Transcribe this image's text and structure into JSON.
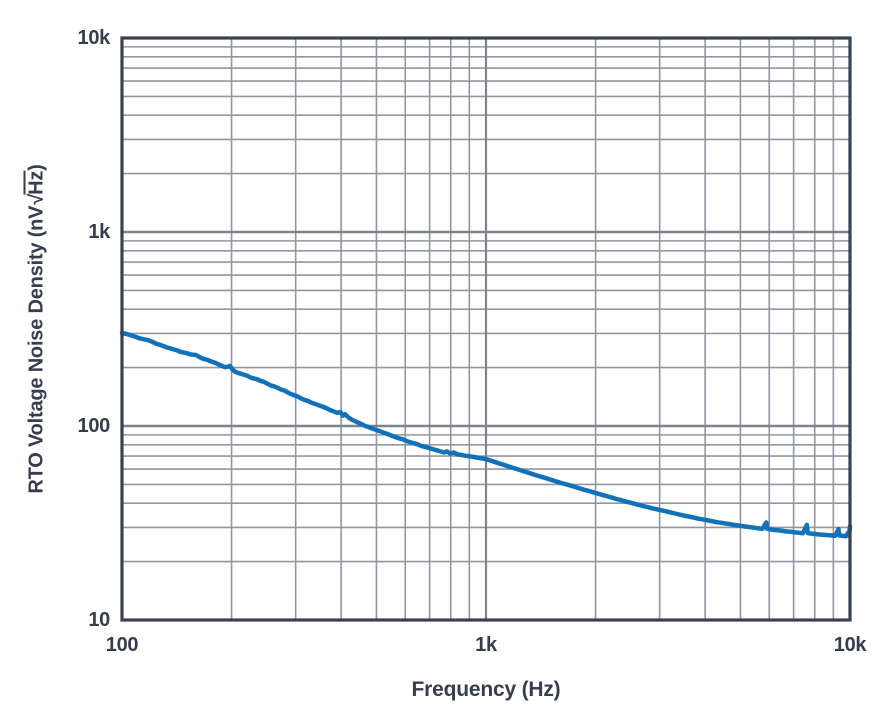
{
  "colors": {
    "background": "#ffffff",
    "frame": "#3a4150",
    "grid_minor": "#9196a0",
    "grid_major": "#7e838e",
    "text": "#363d4d",
    "curve": "#1272b9"
  },
  "chart_data": {
    "type": "line",
    "title": "",
    "xlabel": "Frequency (Hz)",
    "ylabel": "RTO Voltage Noise Density (nV√Hz)",
    "ylabel_parts": {
      "prefix": "RTO Voltage Noise Density (nV",
      "radical": "√",
      "radicand": "Hz",
      "suffix": ")"
    },
    "x_scale": "log",
    "y_scale": "log",
    "xlim": [
      100,
      10000
    ],
    "ylim": [
      10,
      10000
    ],
    "grid": "on",
    "legend_position": "none",
    "x_ticks": [
      {
        "value": 100,
        "label": "100"
      },
      {
        "value": 1000,
        "label": "1k"
      },
      {
        "value": 10000,
        "label": "10k"
      }
    ],
    "y_ticks": [
      {
        "value": 10,
        "label": "10"
      },
      {
        "value": 100,
        "label": "100"
      },
      {
        "value": 1000,
        "label": "1k"
      },
      {
        "value": 10000,
        "label": "10k"
      }
    ],
    "series": [
      {
        "name": "RTO voltage noise density",
        "color": "#1272b9",
        "points": [
          [
            100,
            302
          ],
          [
            103,
            298
          ],
          [
            106,
            293
          ],
          [
            109,
            288
          ],
          [
            112,
            283
          ],
          [
            115,
            280
          ],
          [
            118,
            277
          ],
          [
            121,
            272
          ],
          [
            124,
            266
          ],
          [
            127,
            262
          ],
          [
            130,
            258
          ],
          [
            133,
            254
          ],
          [
            136,
            251
          ],
          [
            139,
            248
          ],
          [
            142,
            245
          ],
          [
            145,
            241
          ],
          [
            148,
            239
          ],
          [
            151,
            237
          ],
          [
            154,
            234
          ],
          [
            157,
            233
          ],
          [
            160,
            232
          ],
          [
            163,
            227
          ],
          [
            166,
            223
          ],
          [
            169,
            221
          ],
          [
            172,
            219
          ],
          [
            176,
            215
          ],
          [
            180,
            212
          ],
          [
            184,
            208
          ],
          [
            188,
            204
          ],
          [
            192,
            201
          ],
          [
            195,
            202
          ],
          [
            198,
            204
          ],
          [
            201,
            196
          ],
          [
            204,
            191
          ],
          [
            208,
            188
          ],
          [
            212,
            186
          ],
          [
            216,
            184
          ],
          [
            220,
            182
          ],
          [
            225,
            178
          ],
          [
            230,
            176
          ],
          [
            235,
            174
          ],
          [
            240,
            171
          ],
          [
            245,
            169
          ],
          [
            250,
            166
          ],
          [
            256,
            162
          ],
          [
            262,
            160
          ],
          [
            268,
            157
          ],
          [
            274,
            154
          ],
          [
            280,
            152
          ],
          [
            287,
            148
          ],
          [
            294,
            145
          ],
          [
            301,
            143
          ],
          [
            308,
            140
          ],
          [
            315,
            137
          ],
          [
            323,
            135
          ],
          [
            331,
            132
          ],
          [
            339,
            130
          ],
          [
            347,
            128
          ],
          [
            355,
            126
          ],
          [
            363,
            124
          ],
          [
            372,
            121
          ],
          [
            381,
            119
          ],
          [
            390,
            117
          ],
          [
            398,
            118
          ],
          [
            404,
            113
          ],
          [
            410,
            115
          ],
          [
            418,
            111
          ],
          [
            427,
            108
          ],
          [
            436,
            106
          ],
          [
            446,
            104
          ],
          [
            456,
            102
          ],
          [
            466,
            100
          ],
          [
            477,
            98.5
          ],
          [
            488,
            97
          ],
          [
            499,
            95.5
          ],
          [
            511,
            94
          ],
          [
            523,
            92.5
          ],
          [
            535,
            91
          ],
          [
            548,
            89.5
          ],
          [
            561,
            88
          ],
          [
            575,
            86.5
          ],
          [
            589,
            85.5
          ],
          [
            603,
            84
          ],
          [
            618,
            82.5
          ],
          [
            633,
            81.5
          ],
          [
            648,
            80.5
          ],
          [
            664,
            79
          ],
          [
            680,
            78
          ],
          [
            697,
            77
          ],
          [
            714,
            76
          ],
          [
            731,
            75
          ],
          [
            749,
            74
          ],
          [
            767,
            73
          ],
          [
            782,
            74
          ],
          [
            798,
            72
          ],
          [
            814,
            73
          ],
          [
            836,
            71.5
          ],
          [
            858,
            70.8
          ],
          [
            880,
            70.2
          ],
          [
            903,
            69.8
          ],
          [
            927,
            69.2
          ],
          [
            951,
            68.6
          ],
          [
            976,
            68
          ],
          [
            1001,
            67.4
          ],
          [
            1027,
            66.4
          ],
          [
            1054,
            65.4
          ],
          [
            1081,
            64.4
          ],
          [
            1109,
            63.4
          ],
          [
            1138,
            62.4
          ],
          [
            1168,
            61.4
          ],
          [
            1198,
            60.5
          ],
          [
            1229,
            59.6
          ],
          [
            1261,
            58.7
          ],
          [
            1294,
            57.8
          ],
          [
            1328,
            56.9
          ],
          [
            1363,
            56
          ],
          [
            1398,
            55.2
          ],
          [
            1435,
            54.4
          ],
          [
            1472,
            53.6
          ],
          [
            1510,
            52.8
          ],
          [
            1550,
            52
          ],
          [
            1590,
            51.2
          ],
          [
            1631,
            50.5
          ],
          [
            1674,
            49.8
          ],
          [
            1717,
            49.1
          ],
          [
            1762,
            48.4
          ],
          [
            1808,
            47.7
          ],
          [
            1855,
            47
          ],
          [
            1903,
            46.4
          ],
          [
            1953,
            45.8
          ],
          [
            2004,
            45.1
          ],
          [
            2056,
            44.5
          ],
          [
            2109,
            43.9
          ],
          [
            2164,
            43.3
          ],
          [
            2221,
            42.7
          ],
          [
            2279,
            42.1
          ],
          [
            2338,
            41.6
          ],
          [
            2399,
            41
          ],
          [
            2461,
            40.5
          ],
          [
            2525,
            40
          ],
          [
            2591,
            39.5
          ],
          [
            2658,
            39
          ],
          [
            2727,
            38.5
          ],
          [
            2798,
            38.1
          ],
          [
            2871,
            37.6
          ],
          [
            2945,
            37.2
          ],
          [
            3022,
            36.8
          ],
          [
            3100,
            36.4
          ],
          [
            3181,
            36
          ],
          [
            3264,
            35.6
          ],
          [
            3349,
            35.2
          ],
          [
            3436,
            34.8
          ],
          [
            3525,
            34.4
          ],
          [
            3617,
            34.1
          ],
          [
            3711,
            33.8
          ],
          [
            3807,
            33.4
          ],
          [
            3906,
            33.1
          ],
          [
            4008,
            32.8
          ],
          [
            4112,
            32.5
          ],
          [
            4219,
            32.2
          ],
          [
            4329,
            31.9
          ],
          [
            4441,
            31.7
          ],
          [
            4557,
            31.4
          ],
          [
            4675,
            31.2
          ],
          [
            4797,
            30.9
          ],
          [
            4922,
            30.7
          ],
          [
            5050,
            30.5
          ],
          [
            5181,
            30.3
          ],
          [
            5316,
            30.1
          ],
          [
            5454,
            29.9
          ],
          [
            5596,
            29.7
          ],
          [
            5741,
            29.5
          ],
          [
            5890,
            31.8
          ],
          [
            5920,
            29.6
          ],
          [
            6043,
            29.3
          ],
          [
            6200,
            29.1
          ],
          [
            6361,
            29
          ],
          [
            6527,
            28.8
          ],
          [
            6696,
            28.6
          ],
          [
            6870,
            28.5
          ],
          [
            7049,
            28.3
          ],
          [
            7232,
            28.2
          ],
          [
            7420,
            28
          ],
          [
            7613,
            30.9
          ],
          [
            7650,
            28.1
          ],
          [
            7810,
            27.9
          ],
          [
            8013,
            27.8
          ],
          [
            8221,
            27.6
          ],
          [
            8435,
            27.5
          ],
          [
            8654,
            27.4
          ],
          [
            8879,
            27.3
          ],
          [
            9110,
            27.2
          ],
          [
            9300,
            29.4
          ],
          [
            9347,
            27.3
          ],
          [
            9590,
            27.1
          ],
          [
            9750,
            27
          ],
          [
            9880,
            28.2
          ],
          [
            9940,
            27.2
          ],
          [
            10000,
            30.4
          ]
        ]
      }
    ]
  }
}
